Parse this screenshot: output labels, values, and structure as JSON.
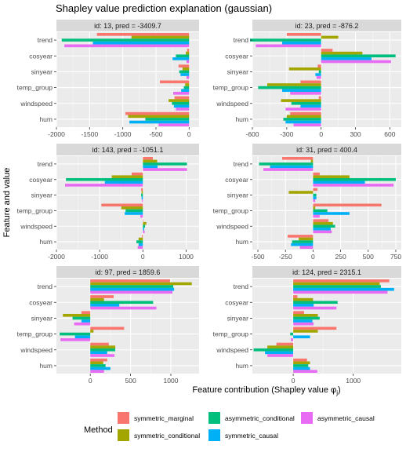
{
  "title": "Shapley value prediction explanation (gaussian)",
  "xlabel": "Feature contribution (Shapley value φ",
  "xlabel_sub": "j",
  "xlabel_close": ")",
  "ylabel": "Feature and value",
  "legend_title": "Method",
  "methods": [
    {
      "key": "symmetric_marginal",
      "label": "symmetric_marginal",
      "color": "#F8766D"
    },
    {
      "key": "symmetric_conditional",
      "label": "symmetric_conditional",
      "color": "#A3A500"
    },
    {
      "key": "asymmetric_conditional",
      "label": "asymmetric_conditional",
      "color": "#00BF7D"
    },
    {
      "key": "symmetric_causal",
      "label": "symmetric_causal",
      "color": "#00B0F6"
    },
    {
      "key": "asymmetric_causal",
      "label": "asymmetric_causal",
      "color": "#E76BF3"
    }
  ],
  "chart_data": {
    "type": "bar",
    "orientation": "horizontal",
    "facets": 6,
    "grid": true,
    "legend_position": "bottom",
    "categories": [
      "trend",
      "cosyear",
      "sinyear",
      "temp_group",
      "windspeed",
      "hum"
    ],
    "panels": [
      {
        "strip": "id: 13, pred = -3409.7",
        "xlim": [
          -2000,
          150
        ],
        "ticks": [
          -2000,
          -1500,
          -1000,
          -500,
          0
        ],
        "tick_labels": [
          "-2000",
          "-1500",
          "-1000",
          "-500",
          "0"
        ],
        "series": [
          {
            "name": "symmetric_marginal",
            "values": [
              -1390,
              -30,
              -160,
              -440,
              -220,
              -960
            ]
          },
          {
            "name": "symmetric_conditional",
            "values": [
              -870,
              -50,
              -100,
              -60,
              -310,
              -920
            ]
          },
          {
            "name": "asymmetric_conditional",
            "values": [
              -1920,
              -200,
              -150,
              -80,
              -260,
              -660
            ]
          },
          {
            "name": "symmetric_causal",
            "values": [
              -1450,
              -250,
              -130,
              -120,
              -230,
              -900
            ]
          },
          {
            "name": "asymmetric_causal",
            "values": [
              -1880,
              -40,
              -40,
              -240,
              -200,
              -460
            ]
          }
        ]
      },
      {
        "strip": "id: 23, pred = -876.2",
        "xlim": [
          -600,
          700
        ],
        "ticks": [
          -600,
          -300,
          0,
          300,
          600
        ],
        "tick_labels": [
          "-600",
          "-300",
          "0",
          "300",
          "600"
        ],
        "series": [
          {
            "name": "symmetric_marginal",
            "values": [
              -300,
              100,
              -30,
              -180,
              -20,
              -270
            ]
          },
          {
            "name": "symmetric_conditional",
            "values": [
              150,
              360,
              -280,
              -470,
              -350,
              -300
            ]
          },
          {
            "name": "asymmetric_conditional",
            "values": [
              -620,
              650,
              -20,
              -550,
              -260,
              -330
            ]
          },
          {
            "name": "symmetric_causal",
            "values": [
              -340,
              440,
              -50,
              -340,
              -180,
              -310
            ]
          },
          {
            "name": "asymmetric_causal",
            "values": [
              -570,
              610,
              -40,
              -270,
              -310,
              -240
            ]
          }
        ]
      },
      {
        "strip": "id: 143, pred = -1051.1",
        "xlim": [
          -2000,
          1300
        ],
        "ticks": [
          -2000,
          -1000,
          0,
          1000
        ],
        "tick_labels": [
          "-2000",
          "-1000",
          "0",
          "1000"
        ],
        "series": [
          {
            "name": "symmetric_marginal",
            "values": [
              230,
              -260,
              -40,
              -960,
              10,
              -20
            ]
          },
          {
            "name": "symmetric_conditional",
            "values": [
              330,
              -720,
              -30,
              -500,
              80,
              -100
            ]
          },
          {
            "name": "asymmetric_conditional",
            "values": [
              1020,
              -1780,
              -40,
              -400,
              50,
              -150
            ]
          },
          {
            "name": "symmetric_causal",
            "values": [
              340,
              -880,
              -30,
              -420,
              30,
              -100
            ]
          },
          {
            "name": "asymmetric_causal",
            "values": [
              1020,
              -1800,
              -20,
              -60,
              40,
              -120
            ]
          }
        ]
      },
      {
        "strip": "id: 31, pred =  400.4",
        "xlim": [
          -550,
          800
        ],
        "ticks": [
          -500,
          -250,
          0,
          250,
          500,
          750
        ],
        "tick_labels": [
          "-500",
          "-250",
          "0",
          "250",
          "500",
          "750"
        ],
        "series": [
          {
            "name": "symmetric_marginal",
            "values": [
              -280,
              60,
              40,
              620,
              140,
              -230
            ]
          },
          {
            "name": "symmetric_conditional",
            "values": [
              -20,
              330,
              -220,
              20,
              180,
              -130
            ]
          },
          {
            "name": "asymmetric_conditional",
            "values": [
              -490,
              750,
              30,
              130,
              200,
              -190
            ]
          },
          {
            "name": "symmetric_causal",
            "values": [
              -390,
              470,
              30,
              330,
              160,
              -200
            ]
          },
          {
            "name": "asymmetric_causal",
            "values": [
              -450,
              730,
              20,
              60,
              170,
              -120
            ]
          }
        ]
      },
      {
        "strip": "id: 97, pred =  1859.6",
        "xlim": [
          -420,
          1350
        ],
        "ticks": [
          0,
          500,
          1000
        ],
        "tick_labels": [
          "0",
          "500",
          "1000"
        ],
        "series": [
          {
            "name": "symmetric_marginal",
            "values": [
              990,
              290,
              -110,
              420,
              230,
              210
            ]
          },
          {
            "name": "symmetric_conditional",
            "values": [
              1260,
              170,
              -340,
              40,
              310,
              160
            ]
          },
          {
            "name": "asymmetric_conditional",
            "values": [
              1030,
              780,
              -220,
              -380,
              310,
              190
            ]
          },
          {
            "name": "symmetric_causal",
            "values": [
              1040,
              360,
              -110,
              -190,
              210,
              250
            ]
          },
          {
            "name": "asymmetric_causal",
            "values": [
              1020,
              820,
              -200,
              -370,
              300,
              170
            ]
          }
        ]
      },
      {
        "strip": "id: 124, pred =  2315.1",
        "xlim": [
          -680,
          1800
        ],
        "ticks": [
          0,
          1000
        ],
        "tick_labels": [
          "0",
          "1000"
        ],
        "series": [
          {
            "name": "symmetric_marginal",
            "values": [
              1600,
              70,
              180,
              720,
              -280,
              230
            ]
          },
          {
            "name": "symmetric_conditional",
            "values": [
              1440,
              330,
              410,
              410,
              -430,
              280
            ]
          },
          {
            "name": "asymmetric_conditional",
            "values": [
              1460,
              740,
              440,
              -50,
              -660,
              250
            ]
          },
          {
            "name": "symmetric_causal",
            "values": [
              1680,
              340,
              320,
              280,
              -470,
              280
            ]
          },
          {
            "name": "asymmetric_causal",
            "values": [
              1570,
              720,
              340,
              -40,
              -430,
              400
            ]
          }
        ]
      }
    ]
  }
}
